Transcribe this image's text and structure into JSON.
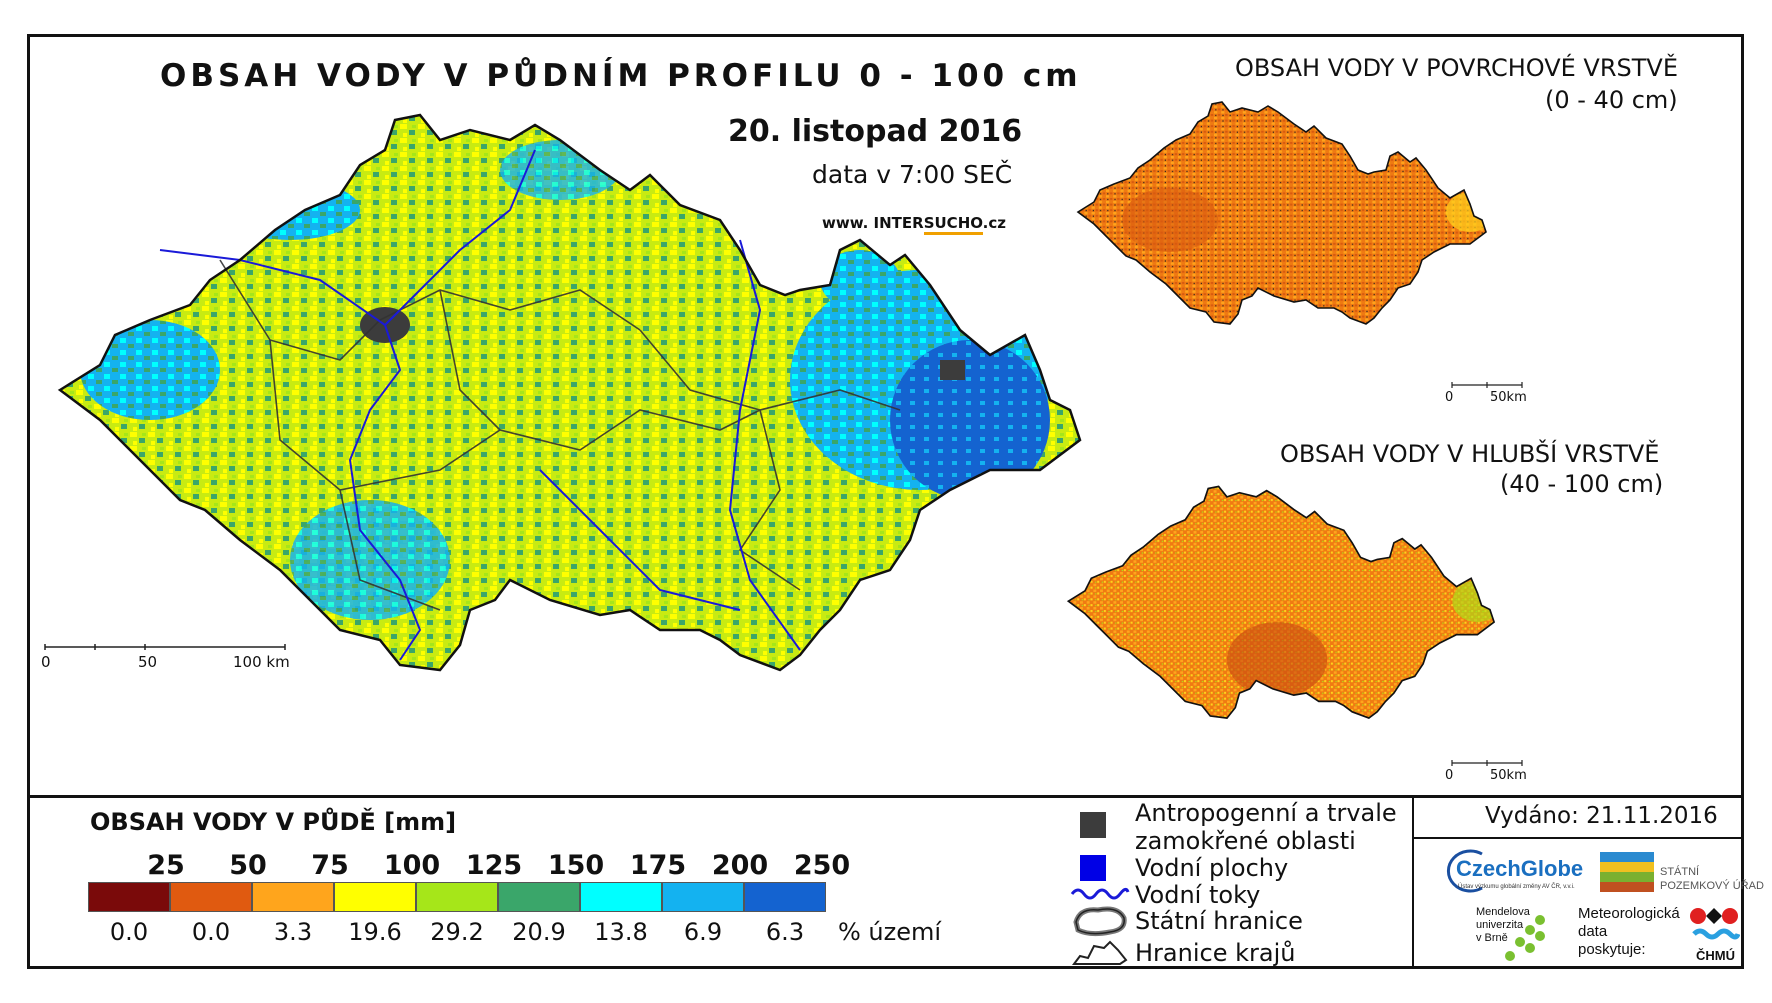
{
  "main_map": {
    "title": "OBSAH VODY V PŮDNÍM PROFILU 0 - 100 cm",
    "date": "20. listopad 2016",
    "data_time": "data v 7:00 SEČ",
    "website_prefix": "www. INTER",
    "website_highlight": "SUCHO",
    "website_suffix": ".cz",
    "scale_labels": [
      "0",
      "50",
      "100 km"
    ]
  },
  "inset_surface": {
    "title": "OBSAH VODY V POVRCHOVÉ VRSTVĚ",
    "range": "(0 - 40 cm)",
    "scale_labels": [
      "0",
      "50km"
    ]
  },
  "inset_deep": {
    "title": "OBSAH VODY V HLUBŠÍ VRSTVĚ",
    "range": "(40 - 100 cm)",
    "scale_labels": [
      "0",
      "50km"
    ]
  },
  "legend": {
    "title": "OBSAH VODY V PŮDĚ [mm]",
    "thresholds": [
      "25",
      "50",
      "75",
      "100",
      "125",
      "150",
      "175",
      "200",
      "250"
    ],
    "classes": [
      {
        "color": "#7a0a0a",
        "percent": "0.0"
      },
      {
        "color": "#e05a10",
        "percent": "0.0"
      },
      {
        "color": "#ffa51c",
        "percent": "3.3"
      },
      {
        "color": "#ffff00",
        "percent": "19.6"
      },
      {
        "color": "#a6e619",
        "percent": "29.2"
      },
      {
        "color": "#3aa66a",
        "percent": "20.9"
      },
      {
        "color": "#00ffff",
        "percent": "13.8"
      },
      {
        "color": "#14b2f0",
        "percent": "6.9"
      },
      {
        "color": "#1463d0",
        "percent": "6.3"
      }
    ],
    "percent_unit": "% území"
  },
  "symbol_legend": {
    "items": [
      {
        "label_line1": "Antropogenní a trvale",
        "label_line2": "zamokřené oblasti",
        "symbol": "dark-square",
        "color": "#3c3c3c"
      },
      {
        "label_line1": "Vodní plochy",
        "symbol": "blue-square",
        "color": "#0000e6"
      },
      {
        "label_line1": "Vodní toky",
        "symbol": "river-line",
        "color": "#1a1ad8"
      },
      {
        "label_line1": "Státní hranice",
        "symbol": "border-outline",
        "color": "#222222"
      },
      {
        "label_line1": "Hranice krajů",
        "symbol": "region-outline",
        "color": "#222222"
      }
    ]
  },
  "issued": "Vydáno: 21.11.2016",
  "logos": {
    "czechglobe": "CzechGlobe",
    "czechglobe_sub": "Ústav výzkumu globální změny AV ČR, v.v.i.",
    "spu_line1": "STÁTNÍ",
    "spu_line2": "POZEMKOVÝ ÚŘAD",
    "mendel_line1": "Mendelova",
    "mendel_line2": "univerzita",
    "mendel_line3": "v Brně",
    "meteo_line1": "Meteorologická",
    "meteo_line2": "data",
    "meteo_line3": "poskytuje:",
    "chmu": "ČHMÚ"
  }
}
